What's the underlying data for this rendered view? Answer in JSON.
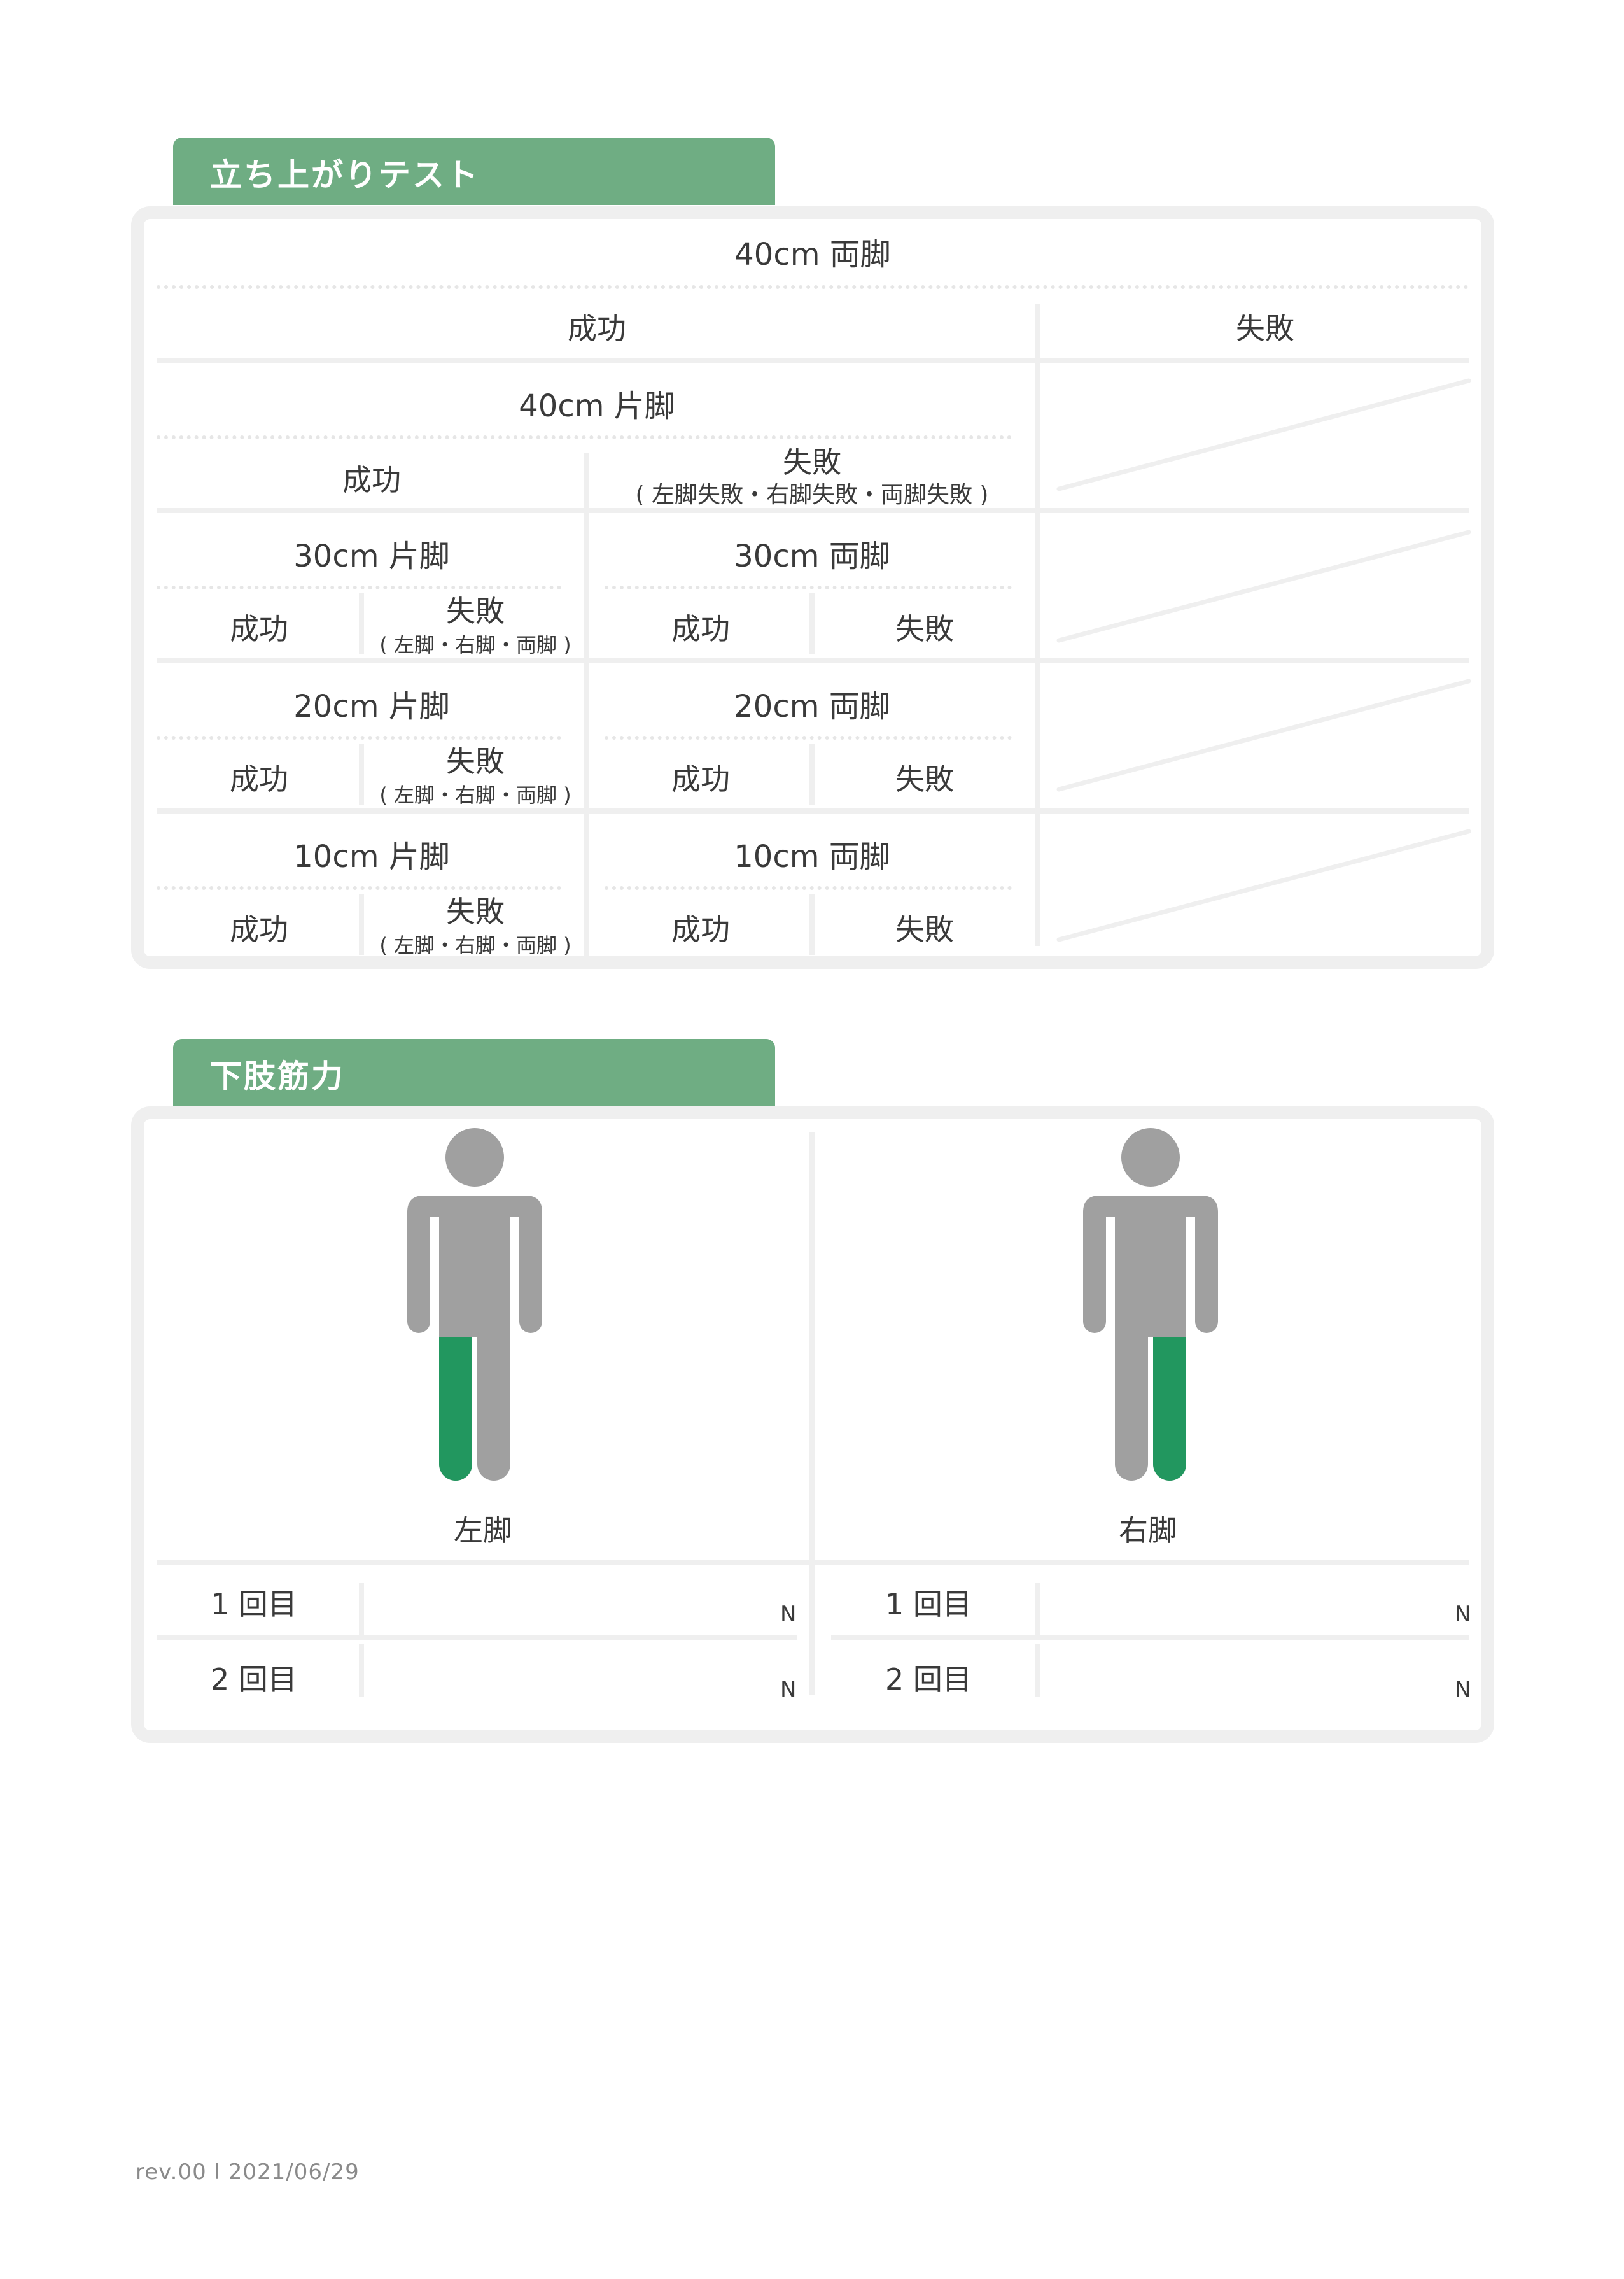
{
  "sections": {
    "standup": {
      "title": "立ち上がりテスト",
      "top_header": "40cm 両脚",
      "success": "成功",
      "failure": "失敗",
      "one_leg_40": "40cm 片脚",
      "fail_detail_long": "( 左脚失敗・右脚失敗・両脚失敗 )",
      "fail_detail_short": "( 左脚・右脚・両脚 )",
      "rows": [
        {
          "single": "30cm 片脚",
          "double": "30cm 両脚"
        },
        {
          "single": "20cm 片脚",
          "double": "20cm 両脚"
        },
        {
          "single": "10cm 片脚",
          "double": "10cm 両脚"
        }
      ]
    },
    "leg_strength": {
      "title": "下肢筋力",
      "left_label": "左脚",
      "right_label": "右脚",
      "trials": [
        "1 回目",
        "2 回目"
      ],
      "unit": "N"
    }
  },
  "colors": {
    "tab": "#6fad83",
    "highlight_leg": "#22975f",
    "figure": "#a0a0a0",
    "border": "#efefef"
  },
  "footer": "rev.00 l 2021/06/29"
}
